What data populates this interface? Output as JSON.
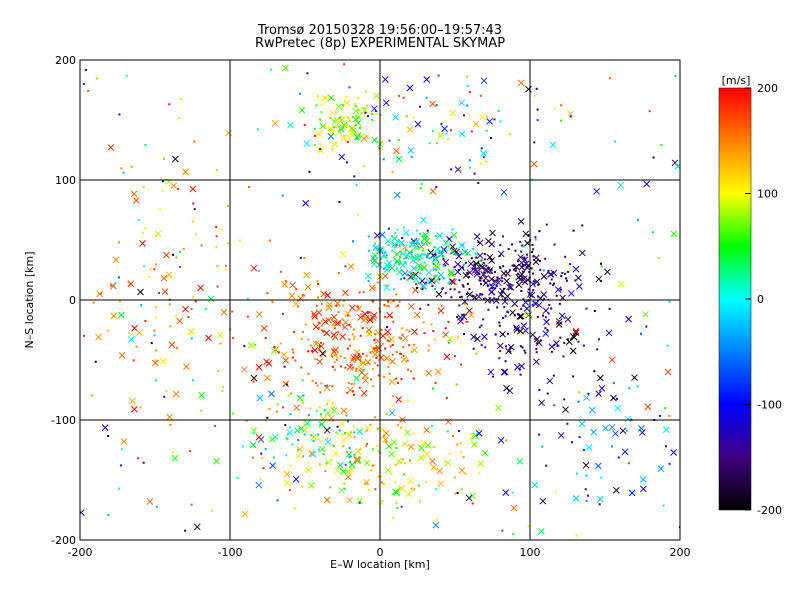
{
  "title": "Tromsø 20150328 19:56:00–19:57:43",
  "subtitle": "RwPretec (8p) EXPERIMENTAL SKYMAP",
  "chart_data": {
    "type": "scatter",
    "title": "Tromsø 20150328 19:56:00–19:57:43",
    "subtitle": "RwPretec (8p) EXPERIMENTAL SKYMAP",
    "xlabel": "E–W location [km]",
    "ylabel": "N–S location [km]",
    "xlim": [
      -200,
      200
    ],
    "ylim": [
      -200,
      200
    ],
    "xticks": [
      -200,
      -100,
      0,
      100,
      200
    ],
    "yticks": [
      -200,
      -100,
      0,
      100,
      200
    ],
    "grid": true,
    "marker_styles": [
      "dot",
      "x"
    ],
    "colorbar": {
      "label": "[m/s]",
      "range": [
        -200,
        200
      ],
      "ticks": [
        200,
        100,
        0,
        -100,
        -200
      ],
      "stops": [
        {
          "value": 200,
          "color": "#ff0000"
        },
        {
          "value": 100,
          "color": "#ffff00"
        },
        {
          "value": 50,
          "color": "#00ff00"
        },
        {
          "value": 0,
          "color": "#00ffff"
        },
        {
          "value": -100,
          "color": "#0000ff"
        },
        {
          "value": -150,
          "color": "#400080"
        },
        {
          "value": -200,
          "color": "#000000"
        }
      ]
    },
    "clusters": [
      {
        "center": [
          -15,
          -30
        ],
        "spread": [
          45,
          35
        ],
        "count": 320,
        "velocity": [
          130,
          200
        ]
      },
      {
        "center": [
          0,
          -130
        ],
        "spread": [
          45,
          30
        ],
        "count": 160,
        "velocity": [
          40,
          160
        ]
      },
      {
        "center": [
          -50,
          -110
        ],
        "spread": [
          35,
          25
        ],
        "count": 90,
        "velocity": [
          -60,
          160
        ]
      },
      {
        "center": [
          80,
          20
        ],
        "spread": [
          40,
          25
        ],
        "count": 260,
        "velocity": [
          -200,
          -120
        ]
      },
      {
        "center": [
          100,
          -30
        ],
        "spread": [
          35,
          35
        ],
        "count": 130,
        "velocity": [
          -200,
          -90
        ]
      },
      {
        "center": [
          25,
          35
        ],
        "spread": [
          22,
          16
        ],
        "count": 180,
        "velocity": [
          -40,
          60
        ]
      },
      {
        "center": [
          -25,
          150
        ],
        "spread": [
          16,
          14
        ],
        "count": 90,
        "velocity": [
          40,
          120
        ]
      },
      {
        "center": [
          40,
          140
        ],
        "spread": [
          55,
          35
        ],
        "count": 90,
        "velocity": [
          -160,
          200
        ]
      },
      {
        "center": [
          -140,
          10
        ],
        "spread": [
          40,
          80
        ],
        "count": 110,
        "velocity": [
          80,
          200
        ]
      },
      {
        "center": [
          150,
          -120
        ],
        "spread": [
          40,
          40
        ],
        "count": 60,
        "velocity": [
          -200,
          0
        ]
      },
      {
        "center": [
          0,
          0
        ],
        "spread": [
          200,
          200
        ],
        "count": 220,
        "velocity": [
          -200,
          200
        ]
      }
    ]
  }
}
